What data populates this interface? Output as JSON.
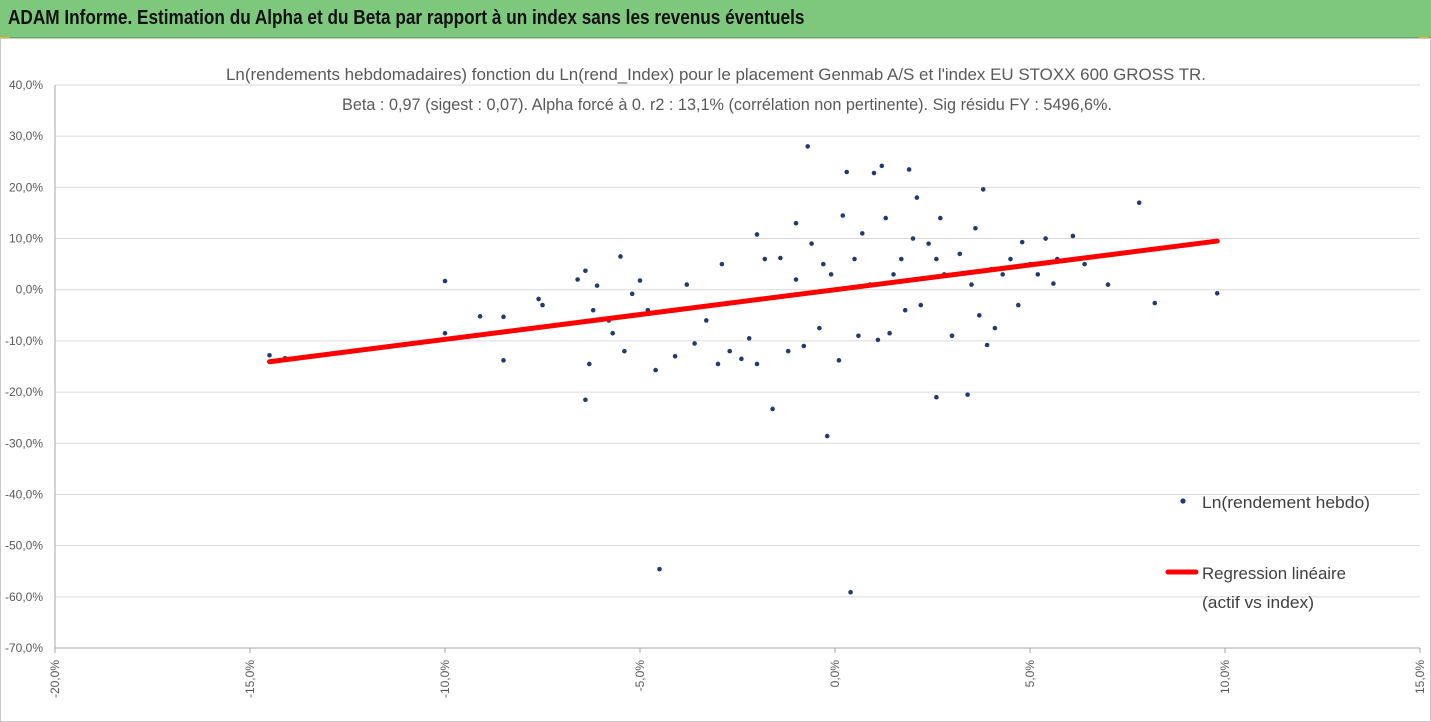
{
  "header": {
    "title": "ADAM Informe. Estimation du Alpha et du Beta par rapport à un index sans les revenus éventuels"
  },
  "colors": {
    "header_bg": "#7ec87e",
    "accent": "#f2b400",
    "points": "#1f3b73",
    "regression": "#ff0000",
    "grid": "#d9d9d9"
  },
  "chart_data": {
    "type": "scatter",
    "title": "Ln(rendements hebdomadaires) fonction du Ln(rend_Index) pour le placement Genmab A/S et l'index EU STOXX 600 GROSS TR.",
    "subtitle": "Beta : 0,97 (sigest : 0,07). Alpha forcé à 0. r2 : 13,1% (corrélation non pertinente). Sig résidu FY : 5496,6%.",
    "xlabel": "",
    "ylabel": "",
    "xlim": [
      -0.2,
      0.15
    ],
    "ylim": [
      -0.7,
      0.4
    ],
    "x_ticks": [
      "-20,0%",
      "-15,0%",
      "-10,0%",
      "-5,0%",
      "0,0%",
      "5,0%",
      "10,0%",
      "15,0%"
    ],
    "y_ticks": [
      "40,0%",
      "30,0%",
      "20,0%",
      "10,0%",
      "0,0%",
      "-10,0%",
      "-20,0%",
      "-30,0%",
      "-40,0%",
      "-50,0%",
      "-60,0%",
      "-70,0%"
    ],
    "grid": "horizontal",
    "legend_position": "right",
    "series": [
      {
        "name": "Ln(rendement hebdo)",
        "kind": "scatter",
        "points": [
          [
            -0.145,
            -0.128
          ],
          [
            -0.141,
            -0.134
          ],
          [
            -0.1,
            0.017
          ],
          [
            -0.1,
            -0.085
          ],
          [
            -0.091,
            -0.052
          ],
          [
            -0.085,
            -0.138
          ],
          [
            -0.085,
            -0.053
          ],
          [
            -0.076,
            -0.018
          ],
          [
            -0.075,
            -0.03
          ],
          [
            -0.066,
            0.02
          ],
          [
            -0.064,
            0.037
          ],
          [
            -0.063,
            -0.145
          ],
          [
            -0.064,
            -0.215
          ],
          [
            -0.062,
            -0.04
          ],
          [
            -0.061,
            0.008
          ],
          [
            -0.058,
            -0.06
          ],
          [
            -0.057,
            -0.085
          ],
          [
            -0.055,
            0.065
          ],
          [
            -0.054,
            -0.12
          ],
          [
            -0.052,
            -0.008
          ],
          [
            -0.05,
            0.018
          ],
          [
            -0.048,
            -0.04
          ],
          [
            -0.046,
            -0.157
          ],
          [
            -0.045,
            -0.546
          ],
          [
            -0.041,
            -0.13
          ],
          [
            -0.038,
            0.01
          ],
          [
            -0.036,
            -0.105
          ],
          [
            -0.033,
            -0.06
          ],
          [
            -0.03,
            -0.145
          ],
          [
            -0.029,
            0.05
          ],
          [
            -0.027,
            -0.12
          ],
          [
            -0.024,
            -0.135
          ],
          [
            -0.022,
            -0.095
          ],
          [
            -0.02,
            0.108
          ],
          [
            -0.02,
            -0.145
          ],
          [
            -0.018,
            0.06
          ],
          [
            -0.016,
            -0.233
          ],
          [
            -0.014,
            0.062
          ],
          [
            -0.012,
            -0.12
          ],
          [
            -0.01,
            0.13
          ],
          [
            -0.01,
            0.02
          ],
          [
            -0.008,
            -0.11
          ],
          [
            -0.007,
            0.28
          ],
          [
            -0.006,
            0.09
          ],
          [
            -0.004,
            -0.075
          ],
          [
            -0.003,
            0.05
          ],
          [
            -0.002,
            -0.286
          ],
          [
            -0.001,
            0.03
          ],
          [
            0.001,
            -0.138
          ],
          [
            0.002,
            0.145
          ],
          [
            0.003,
            0.23
          ],
          [
            0.004,
            -0.591
          ],
          [
            0.005,
            0.06
          ],
          [
            0.006,
            -0.09
          ],
          [
            0.007,
            0.11
          ],
          [
            0.009,
            0.01
          ],
          [
            0.01,
            0.228
          ],
          [
            0.011,
            -0.098
          ],
          [
            0.012,
            0.242
          ],
          [
            0.013,
            0.14
          ],
          [
            0.014,
            -0.085
          ],
          [
            0.015,
            0.03
          ],
          [
            0.017,
            0.06
          ],
          [
            0.018,
            -0.04
          ],
          [
            0.019,
            0.235
          ],
          [
            0.02,
            0.1
          ],
          [
            0.021,
            0.18
          ],
          [
            0.022,
            -0.03
          ],
          [
            0.024,
            0.09
          ],
          [
            0.026,
            0.06
          ],
          [
            0.026,
            -0.21
          ],
          [
            0.027,
            0.14
          ],
          [
            0.028,
            0.03
          ],
          [
            0.03,
            -0.09
          ],
          [
            0.032,
            0.07
          ],
          [
            0.034,
            -0.205
          ],
          [
            0.035,
            0.01
          ],
          [
            0.036,
            0.12
          ],
          [
            0.037,
            -0.05
          ],
          [
            0.038,
            0.196
          ],
          [
            0.039,
            -0.108
          ],
          [
            0.04,
            0.04
          ],
          [
            0.041,
            -0.075
          ],
          [
            0.043,
            0.03
          ],
          [
            0.045,
            0.06
          ],
          [
            0.047,
            -0.03
          ],
          [
            0.048,
            0.093
          ],
          [
            0.05,
            0.05
          ],
          [
            0.052,
            0.03
          ],
          [
            0.054,
            0.1
          ],
          [
            0.056,
            0.012
          ],
          [
            0.057,
            0.06
          ],
          [
            0.061,
            0.105
          ],
          [
            0.064,
            0.05
          ],
          [
            0.07,
            0.01
          ],
          [
            0.078,
            0.17
          ],
          [
            0.082,
            -0.026
          ],
          [
            0.098,
            -0.007
          ]
        ]
      },
      {
        "name": "Regression linéaire (actif vs index)",
        "kind": "line",
        "x_range": [
          -0.145,
          0.098
        ],
        "beta": 0.97,
        "alpha": 0
      }
    ]
  },
  "legend": {
    "scatter_label": "Ln(rendement hebdo)",
    "line_label_1": "Regression linéaire",
    "line_label_2": "(actif vs index)"
  }
}
